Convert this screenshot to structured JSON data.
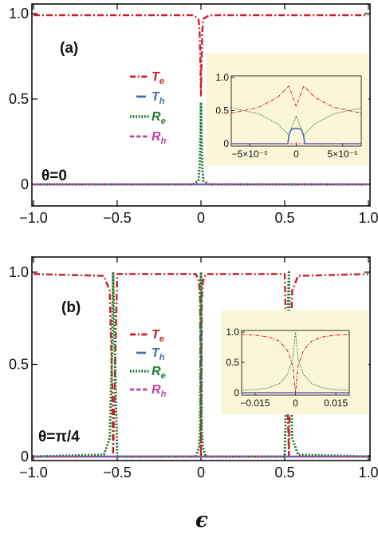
{
  "chart_data": [
    {
      "type": "line",
      "panel_label": "(a)",
      "annotation": "θ=0",
      "xlim": [
        -1.0,
        1.0
      ],
      "ylim": [
        0,
        1.0
      ],
      "x_ticks": [
        "−1.0",
        "−0.5",
        "0",
        "0.5",
        "1.0"
      ],
      "y_ticks": [
        "0",
        "0.5",
        "1.0"
      ],
      "legend_position": "middle-center",
      "series": [
        {
          "name": "T_e",
          "label_main": "T",
          "label_sub": "e",
          "color": "#c8202a",
          "dash": "dashdot",
          "x": [
            -1.0,
            -0.5,
            -0.05,
            -0.015,
            -0.008,
            -0.003,
            0.0,
            0.003,
            0.008,
            0.015,
            0.05,
            0.5,
            1.0
          ],
          "y": [
            0.99,
            0.99,
            0.99,
            0.97,
            0.9,
            0.7,
            0.52,
            0.7,
            0.9,
            0.97,
            0.99,
            0.99,
            0.99
          ]
        },
        {
          "name": "T_h",
          "label_main": "T",
          "label_sub": "h",
          "color": "#3a6fb8",
          "dash": "solid",
          "x": [
            -1.0,
            1.0
          ],
          "y": [
            0.0,
            0.0
          ]
        },
        {
          "name": "R_e",
          "label_main": "R",
          "label_sub": "e",
          "color": "#1f7a30",
          "dash": "dotted",
          "x": [
            -1.0,
            -0.05,
            -0.015,
            -0.008,
            -0.003,
            0.0,
            0.003,
            0.008,
            0.015,
            0.05,
            1.0
          ],
          "y": [
            0.0,
            0.0,
            0.02,
            0.1,
            0.3,
            0.48,
            0.3,
            0.1,
            0.02,
            0.0,
            0.0
          ]
        },
        {
          "name": "R_h",
          "label_main": "R",
          "label_sub": "h",
          "color": "#c040a0",
          "dash": "dashed",
          "x": [
            -1.0,
            1.0
          ],
          "y": [
            0.0,
            0.0
          ]
        }
      ],
      "inset": {
        "xlim": [
          -7e-05,
          7e-05
        ],
        "ylim": [
          0,
          1.0
        ],
        "x_ticks": [
          "−5×10⁻⁵",
          "0",
          "5×10⁻⁵"
        ],
        "y_ticks": [
          "0",
          "0.5",
          "1.0"
        ],
        "background": "#faf6d7",
        "series": [
          {
            "name": "T_e",
            "color": "#c8202a",
            "dash": "dashdot",
            "x": [
              -7e-05,
              -4e-05,
              -2e-05,
              -8e-06,
              0.0,
              8e-06,
              2e-05,
              4e-05,
              7e-05
            ],
            "y": [
              0.46,
              0.55,
              0.7,
              0.87,
              0.56,
              0.87,
              0.7,
              0.55,
              0.46
            ]
          },
          {
            "name": "R_e",
            "color": "#1f7a30",
            "dash": "dotted",
            "x": [
              -7e-05,
              -4e-05,
              -2e-05,
              -8e-06,
              0.0,
              8e-06,
              2e-05,
              4e-05,
              7e-05
            ],
            "y": [
              0.54,
              0.45,
              0.3,
              0.13,
              0.42,
              0.13,
              0.3,
              0.45,
              0.54
            ]
          },
          {
            "name": "T_h",
            "color": "#3a6fb8",
            "dash": "solid",
            "x": [
              -7e-05,
              -9e-06,
              -8e-06,
              -6e-06,
              -3e-06,
              0.0,
              3e-06,
              6e-06,
              8e-06,
              9e-06,
              7e-05
            ],
            "y": [
              0.0,
              0.0,
              0.12,
              0.2,
              0.23,
              0.23,
              0.23,
              0.2,
              0.12,
              0.0,
              0.0
            ]
          },
          {
            "name": "R_h",
            "color": "#c040a0",
            "dash": "dashed",
            "x": [
              -7e-05,
              7e-05
            ],
            "y": [
              0.0,
              0.0
            ]
          }
        ]
      }
    },
    {
      "type": "line",
      "panel_label": "(b)",
      "annotation": "θ=π/4",
      "xlim": [
        -1.0,
        1.0
      ],
      "ylim": [
        0,
        1.0
      ],
      "x_ticks": [
        "−1.0",
        "−0.5",
        "0",
        "0.5",
        "1.0"
      ],
      "y_ticks": [
        "0",
        "0.5",
        "1.0"
      ],
      "xlabel": "ϵ",
      "legend_position": "middle-center",
      "series": [
        {
          "name": "T_e",
          "label_main": "T",
          "label_sub": "e",
          "color": "#c8202a",
          "dash": "dashdot",
          "x": [
            -1.0,
            -0.58,
            -0.545,
            -0.53,
            -0.525,
            -0.5,
            -0.2,
            -0.03,
            -0.012,
            -0.005,
            0.0,
            0.005,
            0.012,
            0.03,
            0.2,
            0.5,
            0.525,
            0.53,
            0.545,
            0.58,
            1.0
          ],
          "y": [
            0.99,
            0.98,
            0.9,
            0.4,
            0.0,
            0.99,
            0.99,
            0.99,
            0.95,
            0.85,
            0.0,
            0.85,
            0.95,
            0.99,
            0.99,
            0.99,
            0.0,
            0.4,
            0.9,
            0.98,
            0.99
          ]
        },
        {
          "name": "T_h",
          "label_main": "T",
          "label_sub": "h",
          "color": "#3a6fb8",
          "dash": "solid",
          "x": [
            -1.0,
            1.0
          ],
          "y": [
            0.0,
            0.0
          ]
        },
        {
          "name": "R_e",
          "label_main": "R",
          "label_sub": "e",
          "color": "#1f7a30",
          "dash": "dotted",
          "x": [
            -1.0,
            -0.58,
            -0.545,
            -0.53,
            -0.525,
            -0.5,
            -0.2,
            -0.03,
            -0.012,
            -0.005,
            0.0,
            0.005,
            0.012,
            0.03,
            0.2,
            0.5,
            0.525,
            0.53,
            0.545,
            0.58,
            1.0
          ],
          "y": [
            0.0,
            0.01,
            0.1,
            0.6,
            1.0,
            0.0,
            0.0,
            0.0,
            0.05,
            0.15,
            1.0,
            0.15,
            0.05,
            0.0,
            0.0,
            0.0,
            1.0,
            0.6,
            0.1,
            0.01,
            0.0
          ]
        },
        {
          "name": "R_h",
          "label_main": "R",
          "label_sub": "h",
          "color": "#c040a0",
          "dash": "dashed",
          "x": [
            -1.0,
            1.0
          ],
          "y": [
            0.0,
            0.0
          ]
        }
      ],
      "inset": {
        "xlim": [
          -0.02,
          0.02
        ],
        "ylim": [
          0,
          1.0
        ],
        "x_ticks": [
          "−0.015",
          "0",
          "0.015"
        ],
        "y_ticks": [
          "0",
          "0.5",
          "1.0"
        ],
        "background": "#faf6d7",
        "series": [
          {
            "name": "T_e",
            "color": "#c8202a",
            "dash": "dashdot",
            "x": [
              -0.02,
              -0.015,
              -0.01,
              -0.006,
              -0.003,
              -0.001,
              0.0,
              0.001,
              0.003,
              0.006,
              0.01,
              0.015,
              0.02
            ],
            "y": [
              0.96,
              0.95,
              0.92,
              0.85,
              0.7,
              0.45,
              0.0,
              0.45,
              0.7,
              0.85,
              0.92,
              0.95,
              0.96
            ]
          },
          {
            "name": "R_e",
            "color": "#1f7a30",
            "dash": "dotted",
            "x": [
              -0.02,
              -0.015,
              -0.01,
              -0.006,
              -0.003,
              -0.001,
              0.0,
              0.001,
              0.003,
              0.006,
              0.01,
              0.015,
              0.02
            ],
            "y": [
              0.04,
              0.05,
              0.08,
              0.15,
              0.3,
              0.55,
              1.0,
              0.55,
              0.3,
              0.15,
              0.08,
              0.05,
              0.04
            ]
          },
          {
            "name": "T_h",
            "color": "#3a6fb8",
            "dash": "solid",
            "x": [
              -0.02,
              0.02
            ],
            "y": [
              0.0,
              0.0
            ]
          },
          {
            "name": "R_h",
            "color": "#c040a0",
            "dash": "dashed",
            "x": [
              -0.02,
              0.02
            ],
            "y": [
              0.0,
              0.0
            ]
          }
        ]
      }
    }
  ]
}
